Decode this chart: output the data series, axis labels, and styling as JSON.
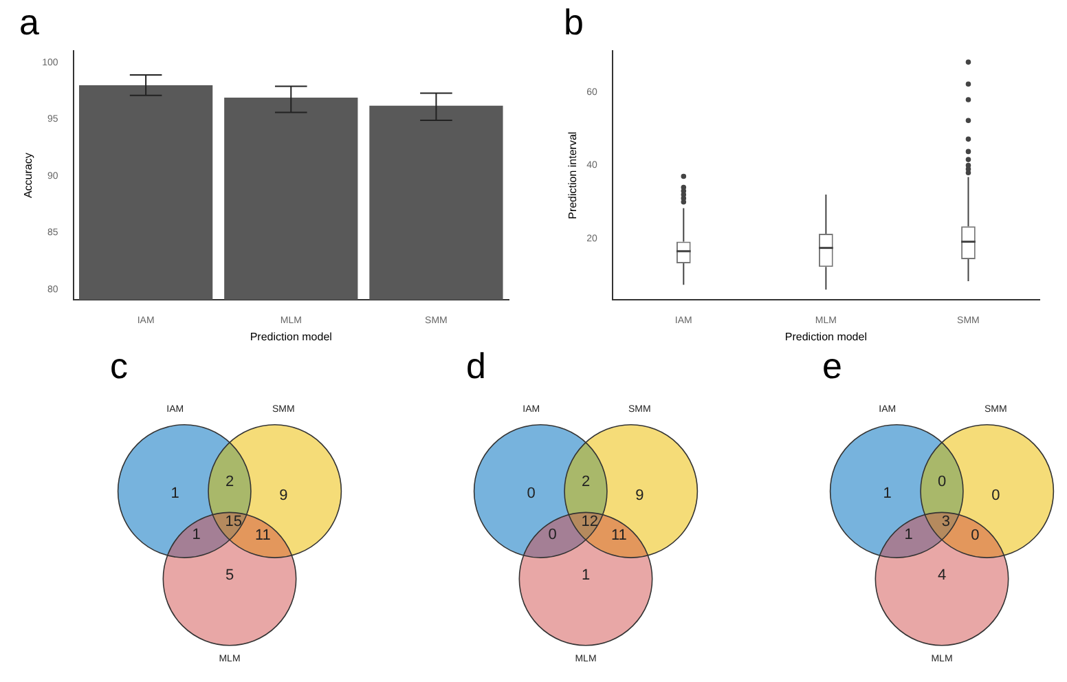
{
  "chart_data": [
    {
      "type": "bar",
      "title": "a",
      "xlabel": "Prediction model",
      "ylabel": "Accuracy",
      "categories": [
        "IAM",
        "MLM",
        "SMM"
      ],
      "values": [
        98.0,
        96.9,
        96.2
      ],
      "errors": [
        [
          97.1,
          98.9
        ],
        [
          95.6,
          97.9
        ],
        [
          94.9,
          97.3
        ]
      ],
      "color": "#595959",
      "ylim": [
        79.1,
        101
      ],
      "yticks": [
        80,
        85,
        90,
        95,
        100
      ],
      "grid": false
    },
    {
      "type": "box",
      "title": "b",
      "xlabel": "Prediction model",
      "ylabel": "Prediction interval",
      "categories": [
        "IAM",
        "MLM",
        "SMM"
      ],
      "boxes": [
        {
          "low": 7.3,
          "q1": 13.2,
          "median": 16.5,
          "q3": 19.1,
          "high": 28.3,
          "outliers": [
            30,
            31,
            32,
            33,
            34,
            37
          ]
        },
        {
          "low": 6.0,
          "q1": 12.2,
          "median": 17.4,
          "q3": 21.3,
          "high": 32.0
        },
        {
          "low": 8.3,
          "q1": 14.3,
          "median": 19.1,
          "q3": 23.3,
          "high": 36.8,
          "outliers": [
            38,
            39,
            40,
            41.6,
            43.8,
            47.2,
            52.3,
            58,
            62.3,
            68.3
          ]
        }
      ],
      "ylim": [
        3.2,
        71.3
      ],
      "yticks": [
        20,
        40,
        60
      ],
      "grid": false
    },
    {
      "type": "other",
      "title": "c",
      "colors": [
        "#77b3dd",
        "#f5dc78",
        "#e8a7a6",
        "#a9b86a",
        "#a47f95",
        "#e3975c",
        "#b58a5e"
      ],
      "annotations": [
        "IAM",
        "SMM",
        "MLM",
        "1",
        "9",
        "5",
        "2",
        "1",
        "11",
        "15"
      ]
    },
    {
      "type": "other",
      "title": "d",
      "colors": [
        "#77b3dd",
        "#f5dc78",
        "#e8a7a6",
        "#a9b86a",
        "#a47f95",
        "#e3975c",
        "#b58a5e"
      ],
      "annotations": [
        "IAM",
        "SMM",
        "MLM",
        "0",
        "9",
        "1",
        "2",
        "0",
        "11",
        "12"
      ]
    },
    {
      "type": "other",
      "title": "e",
      "colors": [
        "#77b3dd",
        "#f5dc78",
        "#e8a7a6",
        "#a9b86a",
        "#a47f95",
        "#e3975c",
        "#b58a5e"
      ],
      "annotations": [
        "IAM",
        "SMM",
        "MLM",
        "1",
        "0",
        "4",
        "0",
        "1",
        "0",
        "3"
      ]
    }
  ]
}
